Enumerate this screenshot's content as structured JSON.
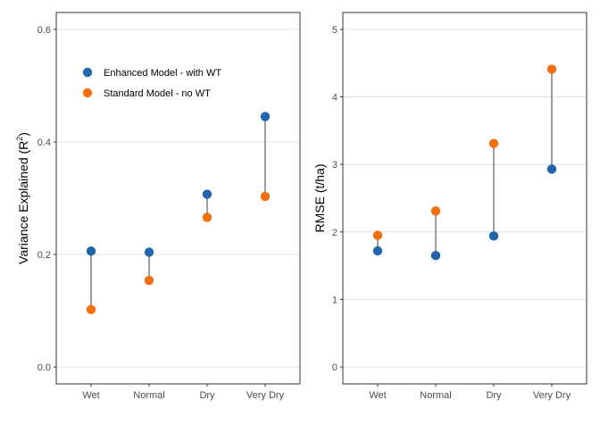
{
  "colors": {
    "enhanced": "#2166ac",
    "standard": "#f4700f",
    "segment": "#666666",
    "grid": "#dcdcdc",
    "border": "#333333"
  },
  "legend": {
    "placement": "top-left inside first panel",
    "items": [
      {
        "label": "Enhanced Model - with WT",
        "color": "#2166ac"
      },
      {
        "label": "Standard Model - no WT",
        "color": "#f4700f"
      }
    ]
  },
  "chart_data": [
    {
      "type": "scatter",
      "style": "dumbbell",
      "categories": [
        "Wet",
        "Normal",
        "Dry",
        "Very Dry"
      ],
      "ylabel_main": "Variance Explained (R",
      "ylabel_sup": "2",
      "ylabel_end": ")",
      "ylim": [
        -0.03,
        0.63
      ],
      "yticks": [
        0.0,
        0.2,
        0.4,
        0.6
      ],
      "ytick_labels": [
        "0.0",
        "0.2",
        "0.4",
        "0.6"
      ],
      "grid": true,
      "series": [
        {
          "name": "Enhanced Model - with WT",
          "values": [
            0.206,
            0.204,
            0.307,
            0.445
          ]
        },
        {
          "name": "Standard Model - no WT",
          "values": [
            0.102,
            0.154,
            0.266,
            0.303
          ]
        }
      ]
    },
    {
      "type": "scatter",
      "style": "dumbbell",
      "categories": [
        "Wet",
        "Normal",
        "Dry",
        "Very Dry"
      ],
      "ylabel": "RMSE (t/ha)",
      "ylim": [
        -0.25,
        5.25
      ],
      "yticks": [
        0,
        1,
        2,
        3,
        4,
        5
      ],
      "ytick_labels": [
        "0",
        "1",
        "2",
        "3",
        "4",
        "5"
      ],
      "grid": true,
      "series": [
        {
          "name": "Enhanced Model - with WT",
          "values": [
            1.72,
            1.65,
            1.94,
            2.93
          ]
        },
        {
          "name": "Standard Model - no WT",
          "values": [
            1.95,
            2.31,
            3.31,
            4.41
          ]
        }
      ]
    }
  ]
}
